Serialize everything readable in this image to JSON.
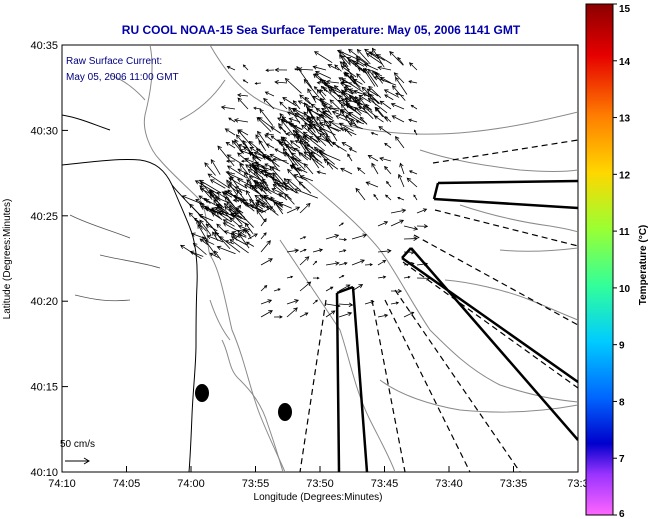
{
  "title": "RU COOL  NOAA-15  Sea Surface Temperature:  May 05, 2006 1141 GMT",
  "annotation": {
    "line1": "Raw Surface Current:",
    "line2": "May 05, 2006 11:00 GMT"
  },
  "axes": {
    "xlabel": "Longitude (Degrees:Minutes)",
    "ylabel": "Latitude (Degrees:Minutes)",
    "xticks": [
      "74:10",
      "74:05",
      "74:00",
      "73:55",
      "73:50",
      "73:45",
      "73:40",
      "73:35",
      "73:3"
    ],
    "yticks": [
      "40:35",
      "40:30",
      "40:25",
      "40:20",
      "40:15",
      "40:10"
    ]
  },
  "scale_label": "50 cm/s",
  "colorbar": {
    "label": "Temperature (°C)",
    "ticks": [
      "15",
      "14",
      "13",
      "12",
      "11",
      "10",
      "9",
      "8",
      "7",
      "6"
    ],
    "min": 6,
    "max": 15
  },
  "colors": {
    "title": "#0000aa",
    "annotation": "#000080"
  }
}
